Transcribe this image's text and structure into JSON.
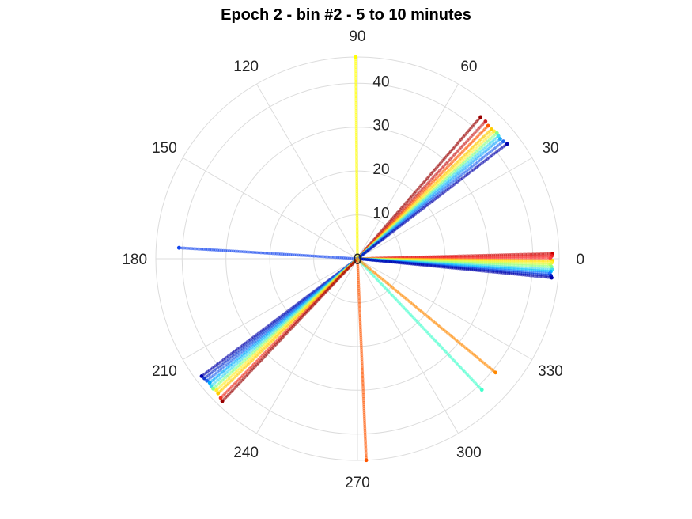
{
  "chart_data": {
    "type": "scatter",
    "projection": "polar",
    "title": "Epoch 2 - bin #2 - 5 to 10 minutes",
    "theta_unit": "degrees",
    "theta_ticks": [
      "0",
      "30",
      "60",
      "90",
      "120",
      "150",
      "180",
      "210",
      "240",
      "270",
      "300",
      "330"
    ],
    "r_ticks": [
      "10",
      "20",
      "30",
      "40"
    ],
    "r_range": [
      0,
      46
    ],
    "grid": true,
    "colormap": "jet",
    "series": [
      {
        "theta": 1.5,
        "r": [
          0,
          44.5
        ],
        "color": "#cc0000"
      },
      {
        "theta": 0.8,
        "r": [
          0,
          44.3
        ],
        "color": "#ee2020"
      },
      {
        "theta": 0.2,
        "r": [
          0,
          44.0
        ],
        "color": "#ff4040"
      },
      {
        "theta": -0.6,
        "r": [
          0,
          44.5
        ],
        "color": "#ffdd00"
      },
      {
        "theta": -1.2,
        "r": [
          0,
          44.3
        ],
        "color": "#ffee30"
      },
      {
        "theta": -1.7,
        "r": [
          0,
          44.0
        ],
        "color": "#ccff55"
      },
      {
        "theta": -2.4,
        "r": [
          0,
          44.3
        ],
        "color": "#88ff88"
      },
      {
        "theta": -3.2,
        "r": [
          0,
          44.5
        ],
        "color": "#44ddee"
      },
      {
        "theta": -3.8,
        "r": [
          0,
          44.2
        ],
        "color": "#00bbff"
      },
      {
        "theta": -4.4,
        "r": [
          0,
          44.0
        ],
        "color": "#2277ff"
      },
      {
        "theta": -5.0,
        "r": [
          0,
          44.3
        ],
        "color": "#0022cc"
      },
      {
        "theta": -5.6,
        "r": [
          0,
          44.5
        ],
        "color": "#0000aa"
      },
      {
        "theta": 49.0,
        "r": [
          0,
          42.8
        ],
        "color": "#990000"
      },
      {
        "theta": 47.0,
        "r": [
          0,
          42.8
        ],
        "color": "#cc2222"
      },
      {
        "theta": 45.5,
        "r": [
          0,
          42.5
        ],
        "color": "#ff5500"
      },
      {
        "theta": 44.0,
        "r": [
          0,
          42.5
        ],
        "color": "#ffcc00"
      },
      {
        "theta": 43.0,
        "r": [
          0,
          42.6
        ],
        "color": "#ffee44"
      },
      {
        "theta": 42.0,
        "r": [
          0,
          42.8
        ],
        "color": "#88ff88"
      },
      {
        "theta": 41.0,
        "r": [
          0,
          42.6
        ],
        "color": "#44ddee"
      },
      {
        "theta": 40.0,
        "r": [
          0,
          42.5
        ],
        "color": "#22aaff"
      },
      {
        "theta": 38.8,
        "r": [
          0,
          42.7
        ],
        "color": "#2266ee"
      },
      {
        "theta": 37.5,
        "r": [
          0,
          43.0
        ],
        "color": "#0000aa"
      },
      {
        "theta": 90.5,
        "r": [
          0,
          46.0
        ],
        "color": "#ffff00"
      },
      {
        "theta": 176.5,
        "r": [
          0,
          40.8
        ],
        "color": "#1144ee"
      },
      {
        "theta": 217.0,
        "r": [
          0,
          44.5
        ],
        "color": "#0000aa"
      },
      {
        "theta": 218.0,
        "r": [
          0,
          44.3
        ],
        "color": "#1133cc"
      },
      {
        "theta": 219.0,
        "r": [
          0,
          44.2
        ],
        "color": "#2266ee"
      },
      {
        "theta": 220.0,
        "r": [
          0,
          44.0
        ],
        "color": "#00aaff"
      },
      {
        "theta": 221.0,
        "r": [
          0,
          44.2
        ],
        "color": "#44ddee"
      },
      {
        "theta": 222.0,
        "r": [
          0,
          44.3
        ],
        "color": "#88ff88"
      },
      {
        "theta": 223.0,
        "r": [
          0,
          44.0
        ],
        "color": "#ffee33"
      },
      {
        "theta": 224.0,
        "r": [
          0,
          44.2
        ],
        "color": "#ffcc00"
      },
      {
        "theta": 225.5,
        "r": [
          0,
          44.5
        ],
        "color": "#ee3322"
      },
      {
        "theta": 226.5,
        "r": [
          0,
          44.8
        ],
        "color": "#990000"
      },
      {
        "theta": 272.5,
        "r": [
          0,
          46.0
        ],
        "color": "#ff5500"
      },
      {
        "theta": 313.5,
        "r": [
          0,
          41.2
        ],
        "color": "#44ffcc"
      },
      {
        "theta": 320.5,
        "r": [
          0,
          40.8
        ],
        "color": "#ff8800"
      }
    ]
  }
}
